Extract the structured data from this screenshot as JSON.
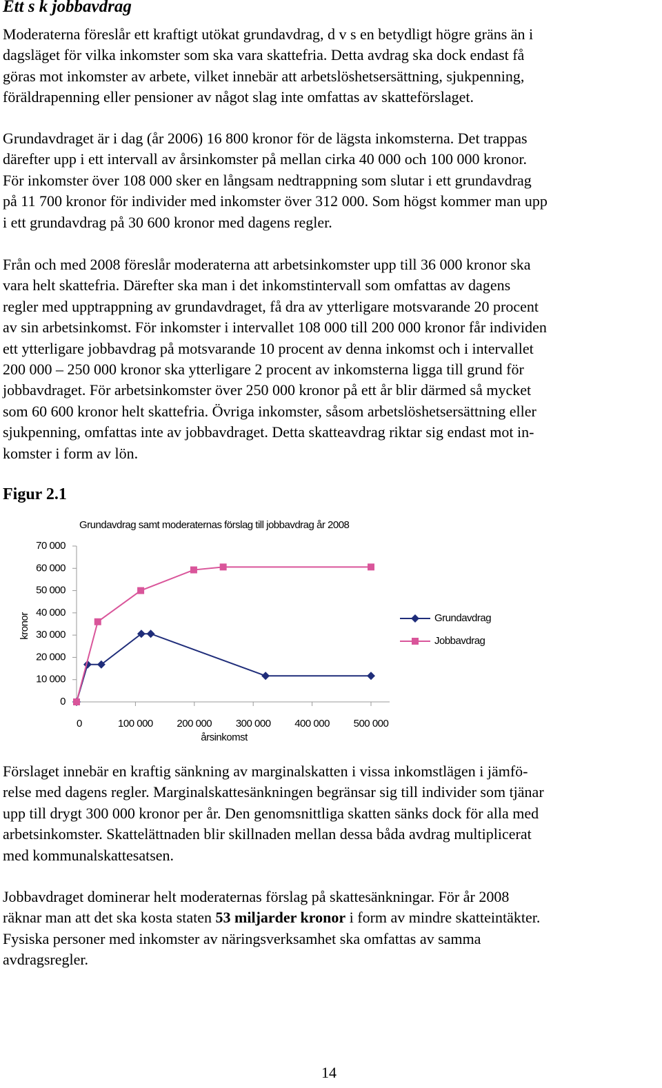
{
  "heading": "Ett s k jobbavdrag",
  "paragraphs": [
    [
      "Moderaterna föreslår ett kraftigt utökat grundavdrag, d v s en betydligt högre gräns än i",
      "dagsläget för vilka inkomster som ska vara skattefria. Detta avdrag ska dock endast få",
      "göras mot inkomster av arbete, vilket innebär att arbetslöshetsersättning, sjukpenning,",
      "föräldrapenning eller pensioner av något slag inte omfattas av skatteförslaget."
    ],
    [
      "Grundavdraget är i dag (år 2006) 16 800 kronor för de lägsta inkomsterna. Det trappas",
      "därefter upp i ett intervall av årsinkomster på mellan cirka 40 000 och 100 000 kronor.",
      "För inkomster över 108 000 sker en långsam nedtrappning som slutar i ett grundavdrag",
      "på 11 700 kronor för individer med inkomster över 312 000. Som högst kommer man upp",
      "i ett grundavdrag på 30 600 kronor med dagens regler."
    ],
    [
      "Från och med 2008 föreslår moderaterna att arbetsinkomster upp till 36 000 kronor ska",
      "vara helt skattefria. Därefter ska man i det inkomstintervall som omfattas av dagens",
      "regler med upptrappning av grundavdraget, få dra av ytterligare motsvarande 20 procent",
      "av sin arbetsinkomst. För inkomster i intervallet 108 000 till 200 000 kronor får individen",
      "ett ytterligare jobbavdrag på motsvarande 10 procent av denna inkomst och i intervallet",
      "200 000 – 250 000 kronor ska ytterligare 2 procent av inkomsterna ligga till grund för",
      "jobbavdraget. För arbetsinkomster över 250 000 kronor på ett år blir därmed så mycket",
      "som 60 600 kronor helt skattefria. Övriga inkomster, såsom arbetslöshetsersättning eller",
      "sjukpenning, omfattas inte av jobbavdraget. Detta skatteavdrag riktar sig endast mot in-",
      "komster i form av lön."
    ]
  ],
  "figure_label": "Figur 2.1",
  "chart_data": {
    "type": "line",
    "title": "Grundavdrag samt moderaternas förslag till jobbavdrag år 2008",
    "x_label": "årsinkomst",
    "y_label": "kronor",
    "series": [
      {
        "name": "Grundavdrag",
        "color": "#1f2d7a",
        "marker": "diamond",
        "x": [
          0,
          18700,
          42000,
          110000,
          126000,
          321000,
          500000
        ],
        "values": [
          0,
          16800,
          16800,
          30600,
          30600,
          11700,
          11700
        ]
      },
      {
        "name": "Jobbavdrag",
        "color": "#d9559a",
        "marker": "square",
        "x": [
          0,
          36000,
          109000,
          199000,
          249000,
          500000
        ],
        "values": [
          0,
          36000,
          50000,
          59300,
          60600,
          60600
        ]
      }
    ],
    "xlim": [
      0,
      500000
    ],
    "xticks": [
      0,
      {
        "value": 100000,
        "label": "100 000"
      },
      {
        "value": 200000,
        "label": "200 000"
      },
      {
        "value": 300000,
        "label": "300 000"
      },
      {
        "value": 400000,
        "label": "400 000"
      },
      {
        "value": 500000,
        "label": "500 000"
      }
    ],
    "ylim": [
      0,
      70000
    ],
    "yticks": [
      0,
      {
        "value": 10000,
        "label": "10 000"
      },
      {
        "value": 20000,
        "label": "20 000"
      },
      {
        "value": 30000,
        "label": "30 000"
      },
      {
        "value": 40000,
        "label": "40 000"
      },
      {
        "value": 50000,
        "label": "50 000"
      },
      {
        "value": 60000,
        "label": "60 000"
      },
      {
        "value": 70000,
        "label": "70 000"
      }
    ],
    "grid": false,
    "legend": "right"
  },
  "paragraphs_after": [
    [
      "Förslaget innebär en kraftig sänkning av marginalskatten i vissa inkomstlägen i jämfö-",
      "relse med dagens regler. Marginalskattesänkningen begränsar sig till individer som tjänar",
      "upp till drygt 300 000 kronor per år. Den genomsnittliga skatten sänks dock för alla med",
      "arbetsinkomster. Skattelättnaden blir skillnaden mellan dessa båda avdrag multiplicerat",
      "med kommunalskattesatsen."
    ],
    [
      "Jobbavdraget dominerar helt moderaternas förslag på skattesänkningar. För år 2008",
      {
        "before": "räknar man att det ska kosta staten ",
        "bold": "53 miljarder kronor",
        "after": " i form av mindre skatteintäkter."
      },
      "Fysiska personer med inkomster av näringsverksamhet ska omfattas av samma",
      "avdragsregler."
    ]
  ],
  "page_number": "14"
}
